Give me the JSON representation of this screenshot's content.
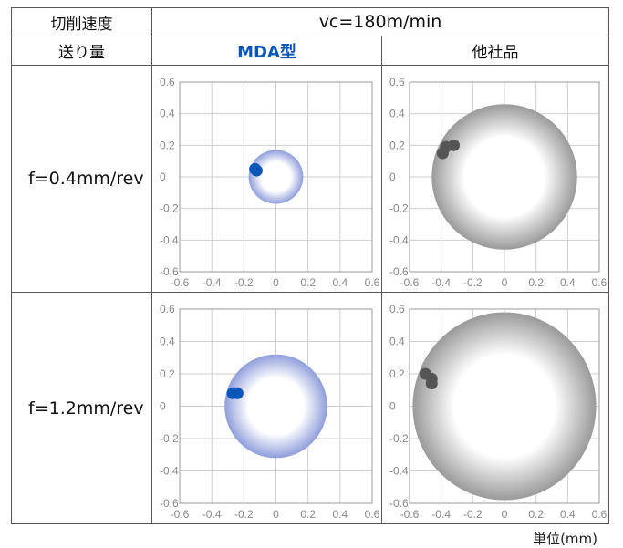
{
  "table": {
    "speed_label": "切削速度",
    "speed_value": "vc=180m/min",
    "feed_label": "送り量",
    "col_mda": "MDA型",
    "col_other": "他社品",
    "rows": [
      {
        "feed": "f=0.4mm/rev"
      },
      {
        "feed": "f=1.2mm/rev"
      }
    ],
    "unit_note": "単位(mm)"
  },
  "colors": {
    "mda_accent": "#0b57b8",
    "mda_ring": "#8f9edb",
    "other_point": "#555555",
    "other_ring": "#9a9a9a"
  },
  "chart_data": [
    {
      "type": "scatter",
      "panel": "MDA型 / f=0.4mm/rev",
      "xlim": [
        -0.6,
        0.6
      ],
      "ylim": [
        -0.6,
        0.6
      ],
      "xticks": [
        "-0.6",
        "-0.4",
        "-0.2",
        "0",
        "0.2",
        "0.4",
        "0.6"
      ],
      "yticks": [
        "0.6",
        "0.4",
        "0.2",
        "0",
        "-0.2",
        "-0.4",
        "-0.6"
      ],
      "grid": true,
      "points": [
        {
          "x": -0.13,
          "y": 0.05
        },
        {
          "x": -0.12,
          "y": 0.04
        }
      ],
      "circle": {
        "cx": 0,
        "cy": 0,
        "r": 0.17
      },
      "point_color": "#0b57b8",
      "circle_color": "#8f9edb"
    },
    {
      "type": "scatter",
      "panel": "他社品 / f=0.4mm/rev",
      "xlim": [
        -0.6,
        0.6
      ],
      "ylim": [
        -0.6,
        0.6
      ],
      "xticks": [
        "-0.6",
        "-0.4",
        "-0.2",
        "0",
        "0.2",
        "0.4",
        "0.6"
      ],
      "yticks": [
        "0.6",
        "0.4",
        "0.2",
        "0",
        "-0.2",
        "-0.4",
        "-0.6"
      ],
      "grid": true,
      "points": [
        {
          "x": -0.32,
          "y": 0.2
        },
        {
          "x": -0.37,
          "y": 0.19
        },
        {
          "x": -0.39,
          "y": 0.15
        }
      ],
      "circle": {
        "cx": 0,
        "cy": 0,
        "r": 0.46
      },
      "point_color": "#555555",
      "circle_color": "#9a9a9a"
    },
    {
      "type": "scatter",
      "panel": "MDA型 / f=1.2mm/rev",
      "xlim": [
        -0.6,
        0.6
      ],
      "ylim": [
        -0.6,
        0.6
      ],
      "xticks": [
        "-0.6",
        "-0.4",
        "-0.2",
        "0",
        "0.2",
        "0.4",
        "0.6"
      ],
      "yticks": [
        "0.6",
        "0.4",
        "0.2",
        "0",
        "-0.2",
        "-0.4",
        "-0.6"
      ],
      "grid": true,
      "points": [
        {
          "x": -0.27,
          "y": 0.08
        },
        {
          "x": -0.24,
          "y": 0.08
        }
      ],
      "circle": {
        "cx": 0,
        "cy": 0,
        "r": 0.32
      },
      "point_color": "#0b57b8",
      "circle_color": "#8f9edb"
    },
    {
      "type": "scatter",
      "panel": "他社品 / f=1.2mm/rev",
      "xlim": [
        -0.6,
        0.6
      ],
      "ylim": [
        -0.6,
        0.6
      ],
      "xticks": [
        "-0.6",
        "-0.4",
        "-0.2",
        "0",
        "0.2",
        "0.4",
        "0.6"
      ],
      "yticks": [
        "0.6",
        "0.4",
        "0.2",
        "0",
        "-0.2",
        "-0.4",
        "-0.6"
      ],
      "grid": true,
      "points": [
        {
          "x": -0.5,
          "y": 0.2
        },
        {
          "x": -0.46,
          "y": 0.17
        },
        {
          "x": -0.46,
          "y": 0.14
        }
      ],
      "circle": {
        "cx": 0,
        "cy": 0,
        "r": 0.58
      },
      "point_color": "#555555",
      "circle_color": "#9a9a9a"
    }
  ]
}
